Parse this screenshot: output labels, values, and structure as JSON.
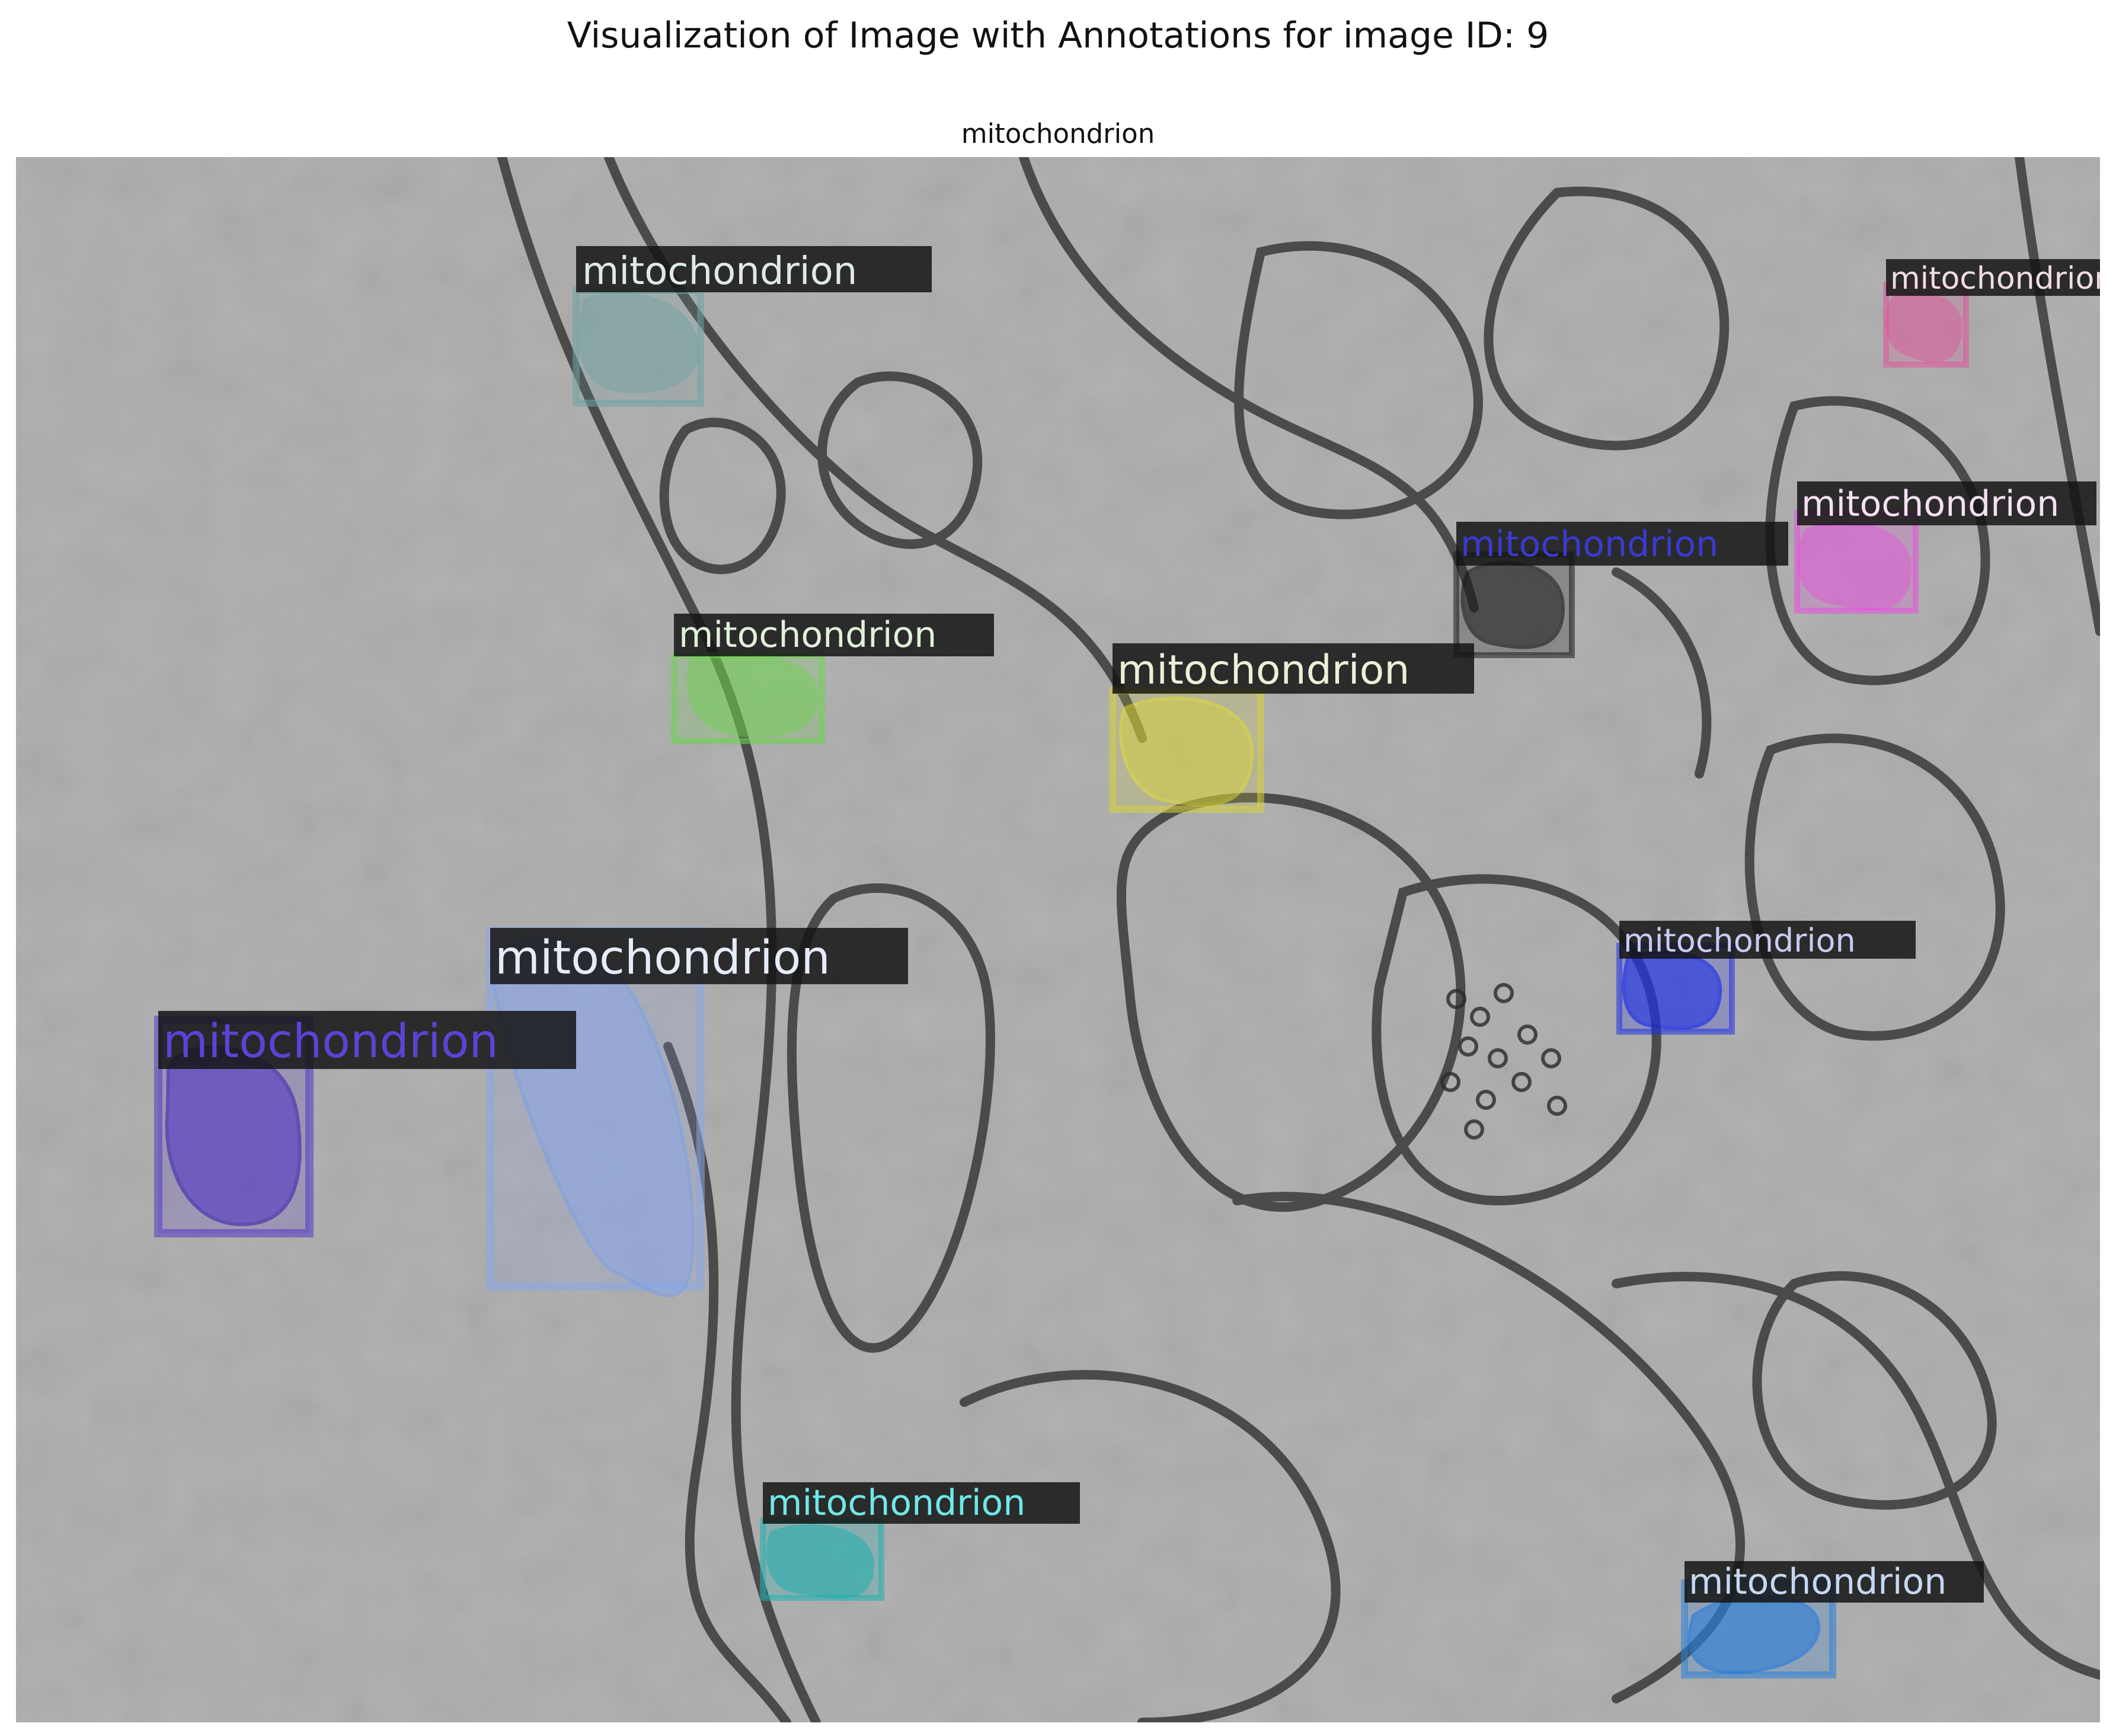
{
  "figure": {
    "title": "Visualization of Image with Annotations for image ID: 9",
    "subtitle": "mitochondrion"
  },
  "annotations": [
    {
      "label": "mitochondrion",
      "color": "#6fa3a3"
    },
    {
      "label": "mitochondrion",
      "color": "#e0559a"
    },
    {
      "label": "mitochondrion",
      "color": "#e94fe0"
    },
    {
      "label": "mitochondrion",
      "color": "#1c1c1c"
    },
    {
      "label": "mitochondrion",
      "color": "#6cd64a"
    },
    {
      "label": "mitochondrion",
      "color": "#d8d23a"
    },
    {
      "label": "mitochondrion",
      "color": "#8aa7ea"
    },
    {
      "label": "mitochondrion",
      "color": "#5437c6"
    },
    {
      "label": "mitochondrion",
      "color": "#2030e8"
    },
    {
      "label": "mitochondrion",
      "color": "#1fb0b0"
    },
    {
      "label": "mitochondrion",
      "color": "#2a7fd8"
    }
  ],
  "colors": {
    "background": "#ffffff",
    "micrograph_base": "#a9a9a9",
    "membrane": "#3a3a3a",
    "label_box": "#141414"
  }
}
